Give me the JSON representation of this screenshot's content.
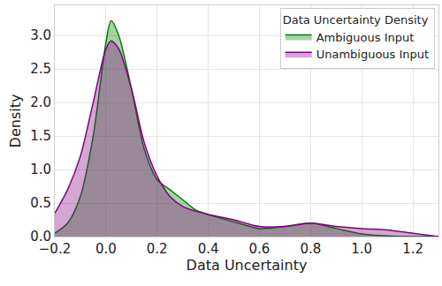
{
  "chart_data": {
    "type": "area",
    "x_label": "Data Uncertainty",
    "y_label": "Density",
    "legend_title": "Data Uncertainty Density",
    "x": [
      -0.2,
      -0.15,
      -0.1,
      -0.05,
      0,
      0.02,
      0.05,
      0.1,
      0.15,
      0.2,
      0.25,
      0.3,
      0.35,
      0.4,
      0.5,
      0.6,
      0.7,
      0.8,
      0.9,
      1.0,
      1.1,
      1.2,
      1.3
    ],
    "series": [
      {
        "name": "Ambiguous Input",
        "color": "#008000",
        "values": [
          0.05,
          0.2,
          0.6,
          1.5,
          2.9,
          3.22,
          3.0,
          2.2,
          1.3,
          0.85,
          0.7,
          0.55,
          0.4,
          0.33,
          0.22,
          0.12,
          0.15,
          0.2,
          0.12,
          0.04,
          0.01,
          0.0,
          0.0
        ]
      },
      {
        "name": "Unambiguous Input",
        "color": "#800080",
        "values": [
          0.35,
          0.7,
          1.2,
          2.0,
          2.8,
          2.92,
          2.8,
          2.2,
          1.4,
          0.9,
          0.6,
          0.45,
          0.38,
          0.33,
          0.25,
          0.15,
          0.15,
          0.2,
          0.15,
          0.12,
          0.1,
          0.05,
          0.0
        ]
      }
    ],
    "xlim": [
      -0.2,
      1.3
    ],
    "ylim": [
      0,
      3.45
    ],
    "xticks": [
      {
        "value": -0.2,
        "label": "−0.2"
      },
      {
        "value": 0,
        "label": "0.0"
      },
      0.2,
      0.4,
      0.6,
      0.8,
      {
        "value": 1,
        "label": "1.0"
      },
      1.2
    ],
    "yticks": [
      {
        "value": 0,
        "label": "0.0"
      },
      0.5,
      {
        "value": 1,
        "label": "1.0"
      },
      1.5,
      {
        "value": 2,
        "label": "2.0"
      },
      2.5,
      {
        "value": 3,
        "label": "3.0"
      }
    ],
    "grid": true,
    "legend": "upper right"
  }
}
